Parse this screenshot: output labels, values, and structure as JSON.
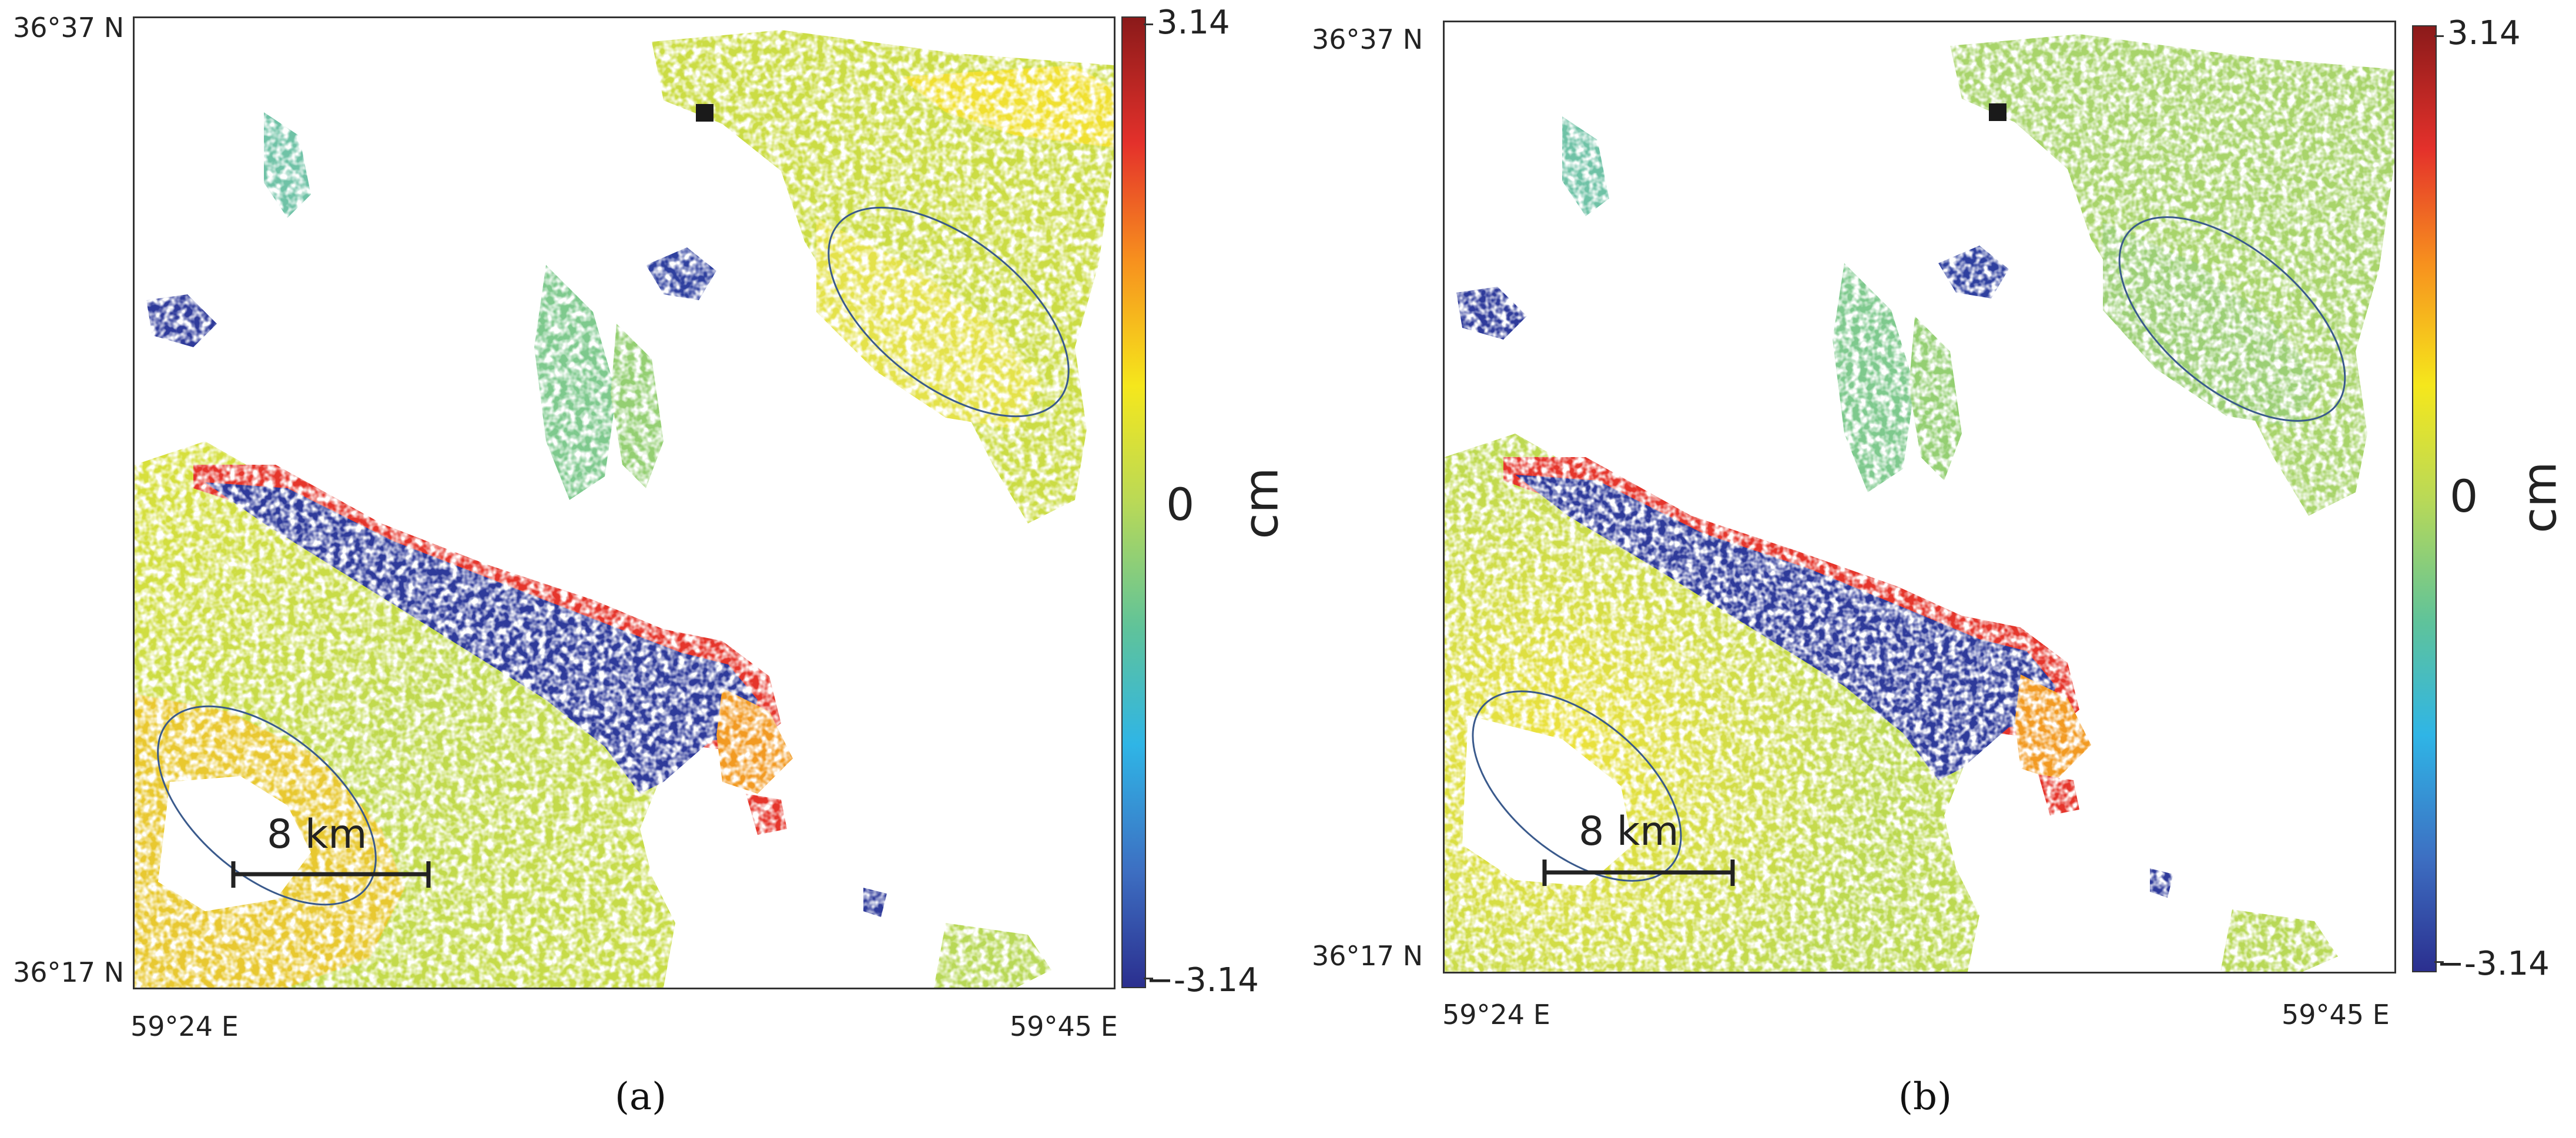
{
  "panels": [
    {
      "caption": "(a)",
      "lat_top": "36°37 N",
      "lat_bottom": "36°17 N",
      "lon_left": "59°24 E",
      "lon_right": "59°45 E",
      "scale_bar_label": "8 km"
    },
    {
      "caption": "(b)",
      "lat_top": "36°37 N",
      "lat_bottom": "36°17 N",
      "lon_left": "59°24 E",
      "lon_right": "59°45 E",
      "scale_bar_label": "8 km"
    }
  ],
  "colorbar": {
    "max_label": "3.14",
    "zero_label": "0",
    "min_label": "−-3.14",
    "unit": "cm",
    "colors": [
      "#8b1a1a",
      "#e4312b",
      "#f7901e",
      "#f5e71c",
      "#b9d957",
      "#5fc39a",
      "#2fb5e6",
      "#3d6fc2",
      "#2b2f8f"
    ]
  }
}
